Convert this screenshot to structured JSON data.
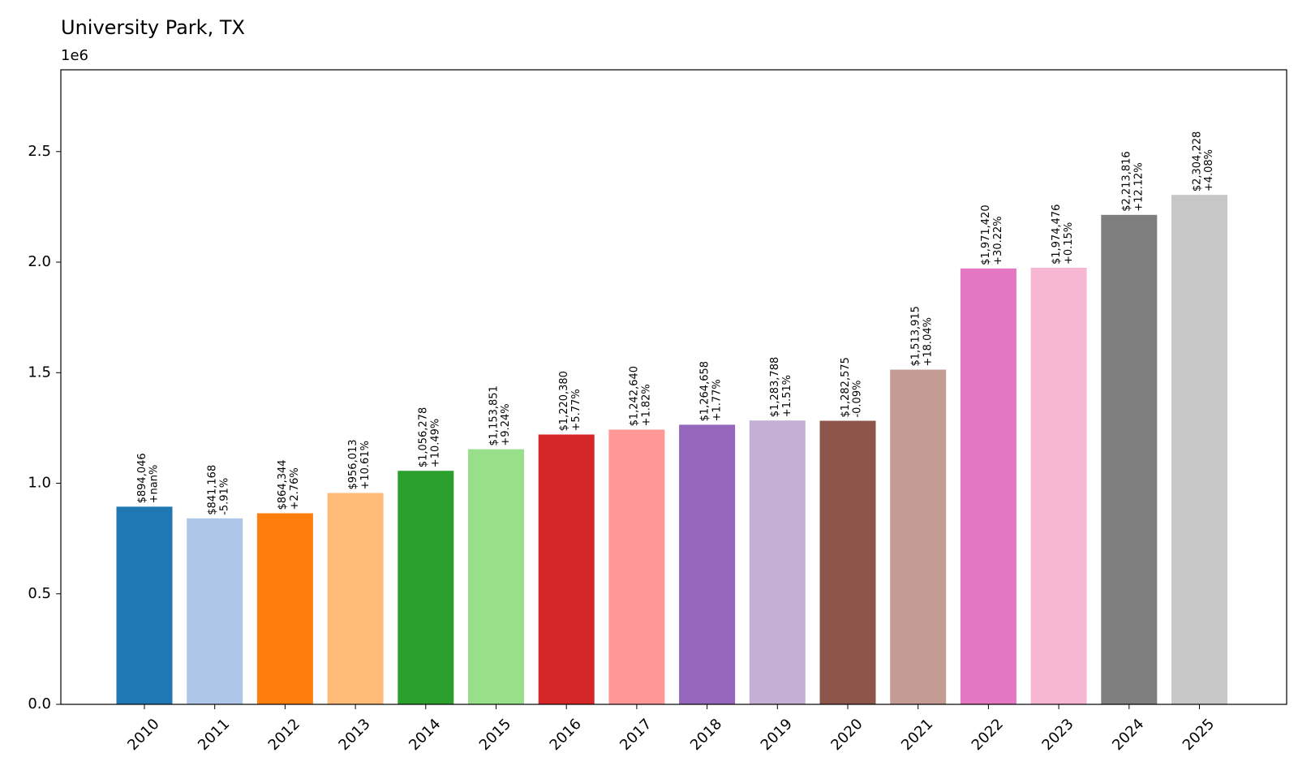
{
  "chart_data": {
    "type": "bar",
    "title": "University Park, TX",
    "xlabel": "",
    "ylabel": "",
    "y_offset_label": "1e6",
    "categories": [
      "2010",
      "2011",
      "2012",
      "2013",
      "2014",
      "2015",
      "2016",
      "2017",
      "2018",
      "2019",
      "2020",
      "2021",
      "2022",
      "2023",
      "2024",
      "2025"
    ],
    "values": [
      894046,
      841168,
      864344,
      956013,
      1056278,
      1153851,
      1220380,
      1242640,
      1264658,
      1283788,
      1282575,
      1513915,
      1971420,
      1974476,
      2213816,
      2304228
    ],
    "value_labels": [
      "$894,046",
      "$841,168",
      "$864,344",
      "$956,013",
      "$1,056,278",
      "$1,153,851",
      "$1,220,380",
      "$1,242,640",
      "$1,264,658",
      "$1,283,788",
      "$1,282,575",
      "$1,513,915",
      "$1,971,420",
      "$1,974,476",
      "$2,213,816",
      "$2,304,228"
    ],
    "change_labels": [
      "+nan%",
      "-5.91%",
      "+2.76%",
      "+10.61%",
      "+10.49%",
      "+9.24%",
      "+5.77%",
      "+1.82%",
      "+1.77%",
      "+1.51%",
      "-0.09%",
      "+18.04%",
      "+30.22%",
      "+0.15%",
      "+12.12%",
      "+4.08%"
    ],
    "colors": [
      "#1f77b4",
      "#aec7e8",
      "#ff7f0e",
      "#ffbb78",
      "#2ca02c",
      "#98df8a",
      "#d62728",
      "#ff9896",
      "#9467bd",
      "#c5b0d5",
      "#8c564b",
      "#c49c94",
      "#e377c2",
      "#f7b6d2",
      "#7f7f7f",
      "#c7c7c7"
    ],
    "ylim": [
      0,
      2870000
    ],
    "yticks": [
      0,
      0.5,
      1.0,
      1.5,
      2.0,
      2.5
    ],
    "ytick_labels": [
      "0.0",
      "0.5",
      "1.0",
      "1.5",
      "2.0",
      "2.5"
    ],
    "grid": false,
    "legend": "none"
  }
}
